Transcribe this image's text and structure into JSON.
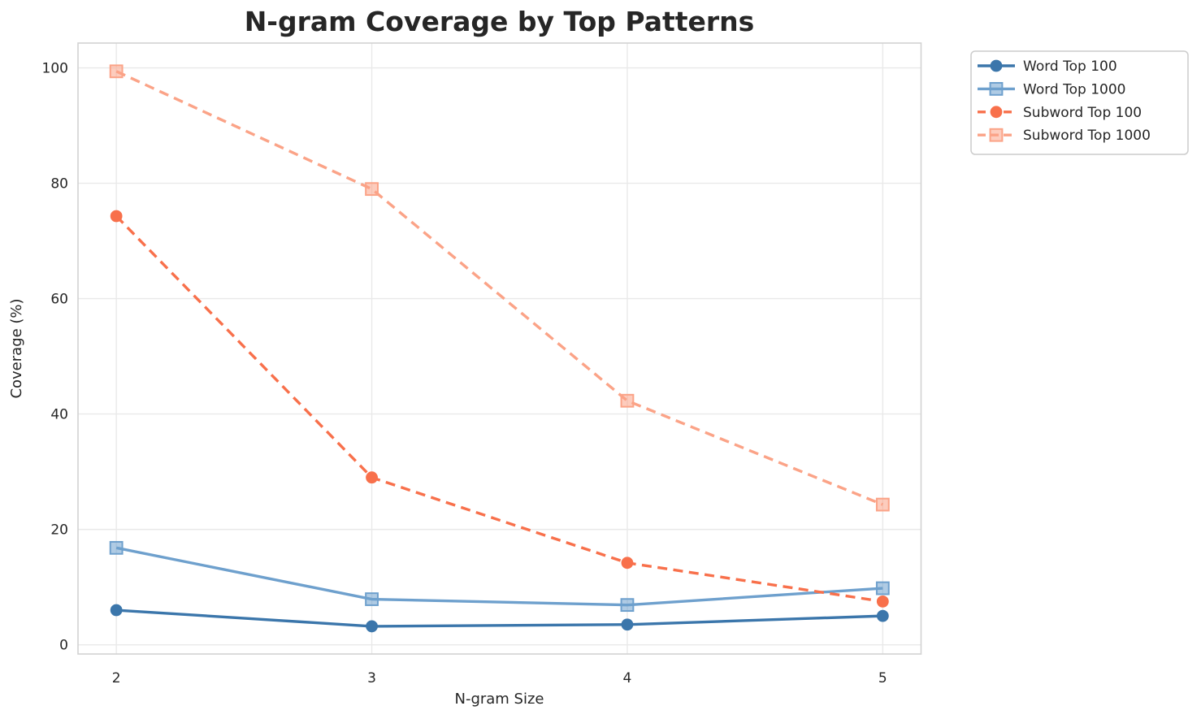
{
  "chart_data": {
    "type": "line",
    "title": "N-gram Coverage by Top Patterns",
    "xlabel": "N-gram Size",
    "ylabel": "Coverage (%)",
    "x": [
      2,
      3,
      4,
      5
    ],
    "xtick_labels": [
      "2",
      "3",
      "4",
      "5"
    ],
    "yticks": [
      0,
      20,
      40,
      60,
      80,
      100
    ],
    "ytick_labels": [
      "0",
      "20",
      "40",
      "60",
      "80",
      "100"
    ],
    "xlim": [
      1.85,
      5.15
    ],
    "ylim": [
      -1.6,
      104.3
    ],
    "grid": true,
    "legend_position": "outside-top-right",
    "series": [
      {
        "name": "Word Top 100",
        "values": [
          6.0,
          3.2,
          3.5,
          5.0
        ],
        "color": "#3b76ab",
        "line_style": "solid",
        "marker": "circle"
      },
      {
        "name": "Word Top 1000",
        "values": [
          16.8,
          7.9,
          6.9,
          9.8
        ],
        "color": "#6ea0cd",
        "line_style": "solid",
        "marker": "square"
      },
      {
        "name": "Subword Top 100",
        "values": [
          74.3,
          29.0,
          14.2,
          7.5
        ],
        "color": "#f8704b",
        "line_style": "dashed",
        "marker": "circle"
      },
      {
        "name": "Subword Top 1000",
        "values": [
          99.4,
          79.0,
          42.3,
          24.3
        ],
        "color": "#fba387",
        "line_style": "dashed",
        "marker": "square"
      }
    ],
    "colors": {
      "grid": "#e9e9e9",
      "spine": "#d2d2d2",
      "text": "#262626",
      "legend_border": "#cccccc",
      "background": "#ffffff"
    }
  }
}
